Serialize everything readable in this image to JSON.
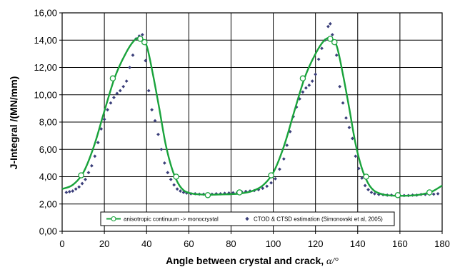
{
  "chart_data": {
    "type": "line",
    "xlabel": "Angle between crystal and crack,",
    "xlabel_symbol": "α/°",
    "ylabel": "J-Integral  /(MN/mm)",
    "xlim": [
      0,
      180
    ],
    "ylim": [
      0,
      16
    ],
    "x_ticks": [
      "0",
      "20",
      "40",
      "60",
      "80",
      "100",
      "120",
      "140",
      "160",
      "180"
    ],
    "y_ticks": [
      "0,00",
      "2,00",
      "4,00",
      "6,00",
      "8,00",
      "10,00",
      "12,00",
      "14,00",
      "16,00"
    ],
    "grid": true,
    "legend_position": "bottom",
    "series": [
      {
        "name": "anisotropic continuum -> monocrystal",
        "kind": "line-with-markers",
        "color": "#1aa33c",
        "curve": [
          [
            0,
            3.1
          ],
          [
            5,
            3.4
          ],
          [
            10,
            4.3
          ],
          [
            15,
            6.2
          ],
          [
            20,
            8.8
          ],
          [
            25,
            11.3
          ],
          [
            30,
            13.0
          ],
          [
            34,
            13.95
          ],
          [
            37,
            14.15
          ],
          [
            40,
            13.6
          ],
          [
            43,
            11.5
          ],
          [
            46,
            9.0
          ],
          [
            49,
            6.4
          ],
          [
            52,
            4.6
          ],
          [
            55,
            3.5
          ],
          [
            58,
            2.95
          ],
          [
            62,
            2.75
          ],
          [
            66,
            2.7
          ],
          [
            70,
            2.68
          ],
          [
            75,
            2.7
          ],
          [
            80,
            2.72
          ],
          [
            85,
            2.78
          ],
          [
            90,
            2.95
          ],
          [
            95,
            3.35
          ],
          [
            100,
            4.3
          ],
          [
            105,
            6.2
          ],
          [
            110,
            8.8
          ],
          [
            115,
            11.3
          ],
          [
            120,
            13.0
          ],
          [
            124,
            13.95
          ],
          [
            127,
            14.15
          ],
          [
            130,
            13.6
          ],
          [
            133,
            11.5
          ],
          [
            136,
            9.0
          ],
          [
            139,
            6.4
          ],
          [
            142,
            4.6
          ],
          [
            145,
            3.5
          ],
          [
            148,
            2.95
          ],
          [
            152,
            2.7
          ],
          [
            156,
            2.62
          ],
          [
            160,
            2.6
          ],
          [
            165,
            2.62
          ],
          [
            170,
            2.7
          ],
          [
            175,
            2.9
          ],
          [
            180,
            3.35
          ]
        ],
        "markers": [
          [
            9,
            4.1
          ],
          [
            24,
            11.2
          ],
          [
            37,
            14.1
          ],
          [
            39,
            13.85
          ],
          [
            54,
            4.0
          ],
          [
            69,
            2.65
          ],
          [
            84,
            2.85
          ],
          [
            99,
            4.1
          ],
          [
            114,
            11.2
          ],
          [
            127,
            14.1
          ],
          [
            129,
            13.85
          ],
          [
            144,
            4.0
          ],
          [
            159,
            2.65
          ],
          [
            174,
            2.85
          ]
        ]
      },
      {
        "name": "CTOD & CTSD estimation (Simonovski et al, 2005)",
        "kind": "scatter",
        "color": "#3b3f7a",
        "points": [
          [
            2,
            2.85
          ],
          [
            3.5,
            2.9
          ],
          [
            5,
            2.95
          ],
          [
            6.5,
            3.1
          ],
          [
            8,
            3.25
          ],
          [
            9.5,
            3.5
          ],
          [
            11,
            3.8
          ],
          [
            12.5,
            4.3
          ],
          [
            14,
            4.8
          ],
          [
            15.5,
            5.5
          ],
          [
            17,
            6.5
          ],
          [
            18.5,
            7.5
          ],
          [
            20,
            8.2
          ],
          [
            21.5,
            8.9
          ],
          [
            23,
            9.4
          ],
          [
            24.5,
            9.8
          ],
          [
            26,
            10.1
          ],
          [
            27.5,
            10.3
          ],
          [
            29,
            10.6
          ],
          [
            30.5,
            11.0
          ],
          [
            32,
            12.0
          ],
          [
            33.5,
            12.9
          ],
          [
            35,
            14.1
          ],
          [
            36.5,
            14.3
          ],
          [
            38,
            14.4
          ],
          [
            39.5,
            12.5
          ],
          [
            41,
            10.3
          ],
          [
            42.5,
            8.9
          ],
          [
            44,
            8.1
          ],
          [
            45.5,
            7.1
          ],
          [
            47,
            6.0
          ],
          [
            48.5,
            5.0
          ],
          [
            50,
            4.3
          ],
          [
            51.5,
            3.8
          ],
          [
            53,
            3.4
          ],
          [
            54.5,
            3.1
          ],
          [
            56,
            2.95
          ],
          [
            57.5,
            2.85
          ],
          [
            59,
            2.8
          ],
          [
            61,
            2.75
          ],
          [
            63,
            2.75
          ],
          [
            65,
            2.72
          ],
          [
            67,
            2.72
          ],
          [
            69,
            2.72
          ],
          [
            71,
            2.72
          ],
          [
            73,
            2.75
          ],
          [
            75,
            2.75
          ],
          [
            77,
            2.78
          ],
          [
            79,
            2.8
          ],
          [
            81,
            2.82
          ],
          [
            83,
            2.85
          ],
          [
            85,
            2.9
          ],
          [
            87,
            2.92
          ],
          [
            89,
            2.95
          ],
          [
            91,
            2.98
          ],
          [
            93,
            3.05
          ],
          [
            95,
            3.15
          ],
          [
            97,
            3.3
          ],
          [
            99,
            3.55
          ],
          [
            101,
            3.85
          ],
          [
            103,
            4.55
          ],
          [
            105,
            5.3
          ],
          [
            106.5,
            6.3
          ],
          [
            108,
            7.3
          ],
          [
            109.5,
            8.4
          ],
          [
            111,
            9.1
          ],
          [
            112.5,
            9.7
          ],
          [
            114,
            10.2
          ],
          [
            115.5,
            10.5
          ],
          [
            117,
            10.7
          ],
          [
            118.5,
            11.0
          ],
          [
            120,
            11.5
          ],
          [
            121.5,
            12.6
          ],
          [
            123,
            13.4
          ],
          [
            124.5,
            14.0
          ],
          [
            126,
            15.0
          ],
          [
            127,
            15.2
          ],
          [
            128,
            14.4
          ],
          [
            130,
            12.9
          ],
          [
            131.5,
            10.6
          ],
          [
            133,
            9.4
          ],
          [
            134.5,
            8.3
          ],
          [
            136,
            7.6
          ],
          [
            137.5,
            6.8
          ],
          [
            139,
            5.5
          ],
          [
            140.5,
            4.6
          ],
          [
            142,
            3.9
          ],
          [
            143.5,
            3.35
          ],
          [
            145,
            3.05
          ],
          [
            146.5,
            2.85
          ],
          [
            148,
            2.75
          ],
          [
            150,
            2.7
          ],
          [
            152,
            2.68
          ],
          [
            154,
            2.65
          ],
          [
            156,
            2.65
          ],
          [
            158,
            2.62
          ],
          [
            160,
            2.62
          ],
          [
            162,
            2.62
          ],
          [
            164,
            2.62
          ],
          [
            166,
            2.65
          ],
          [
            168,
            2.65
          ],
          [
            170,
            2.7
          ],
          [
            172,
            2.7
          ],
          [
            174,
            2.72
          ],
          [
            176,
            2.72
          ],
          [
            178,
            2.75
          ]
        ]
      }
    ]
  }
}
